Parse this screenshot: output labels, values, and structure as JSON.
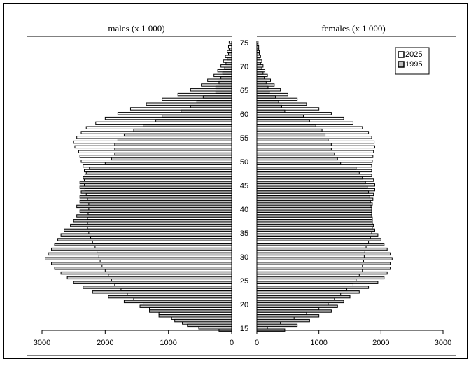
{
  "chart_data": {
    "type": "pyramid",
    "left_title": "males (x 1 000)",
    "right_title": "females (x 1 000)",
    "categories": [
      15,
      null,
      null,
      null,
      null,
      20,
      null,
      null,
      null,
      null,
      25,
      null,
      null,
      null,
      null,
      30,
      null,
      null,
      null,
      null,
      35,
      null,
      null,
      null,
      null,
      40,
      null,
      null,
      null,
      null,
      45,
      null,
      null,
      null,
      null,
      50,
      null,
      null,
      null,
      null,
      55,
      null,
      null,
      null,
      null,
      60,
      null,
      null,
      null,
      null,
      65,
      null,
      null,
      null,
      null,
      70,
      null,
      null,
      null,
      null,
      75
    ],
    "xlim": [
      0,
      3000
    ],
    "xticks": [
      0,
      1000,
      2000,
      3000
    ],
    "legend": "upper right",
    "series": [
      {
        "name": "2025",
        "color": "#ffffff",
        "males": [
          520,
          780,
          950,
          1150,
          1300,
          1400,
          1550,
          1650,
          1750,
          1850,
          1900,
          1950,
          2000,
          2050,
          2080,
          2100,
          2130,
          2160,
          2200,
          2230,
          2260,
          2280,
          2280,
          2280,
          2270,
          2260,
          2260,
          2280,
          2300,
          2320,
          2330,
          2330,
          2320,
          2330,
          2350,
          2380,
          2400,
          2420,
          2480,
          2500,
          2450,
          2380,
          2300,
          2150,
          2000,
          1800,
          1600,
          1350,
          1100,
          850,
          650,
          480,
          380,
          280,
          220,
          170,
          130,
          100,
          70,
          50,
          40
        ],
        "females": [
          170,
          380,
          600,
          800,
          1000,
          1150,
          1250,
          1350,
          1450,
          1550,
          1600,
          1650,
          1700,
          1700,
          1720,
          1730,
          1740,
          1760,
          1800,
          1830,
          1850,
          1860,
          1860,
          1860,
          1850,
          1850,
          1860,
          1870,
          1880,
          1900,
          1900,
          1880,
          1850,
          1850,
          1850,
          1860,
          1870,
          1880,
          1900,
          1890,
          1850,
          1800,
          1700,
          1550,
          1400,
          1200,
          1000,
          800,
          650,
          500,
          380,
          280,
          220,
          170,
          130,
          100,
          80,
          60,
          40,
          30,
          20
        ]
      },
      {
        "name": "1995",
        "color": "#c0c0c0",
        "males": [
          200,
          700,
          900,
          1150,
          1300,
          1450,
          1700,
          1950,
          2200,
          2350,
          2500,
          2600,
          2700,
          2800,
          2850,
          2950,
          2900,
          2850,
          2800,
          2750,
          2700,
          2650,
          2550,
          2500,
          2450,
          2400,
          2450,
          2400,
          2400,
          2380,
          2400,
          2400,
          2350,
          2300,
          2250,
          2000,
          1900,
          1850,
          1850,
          1850,
          1800,
          1700,
          1550,
          1400,
          1200,
          1100,
          800,
          650,
          550,
          450,
          250,
          250,
          200,
          170,
          140,
          110,
          90,
          70,
          50,
          40,
          30
        ],
        "females": [
          450,
          650,
          850,
          1000,
          1200,
          1300,
          1400,
          1500,
          1650,
          1800,
          1950,
          2050,
          2100,
          2150,
          2150,
          2180,
          2150,
          2100,
          2050,
          2000,
          1950,
          1900,
          1880,
          1860,
          1850,
          1850,
          1840,
          1830,
          1820,
          1800,
          1780,
          1750,
          1700,
          1650,
          1600,
          1350,
          1300,
          1250,
          1200,
          1200,
          1150,
          1100,
          1050,
          950,
          850,
          750,
          450,
          400,
          350,
          300,
          200,
          180,
          150,
          120,
          100,
          80,
          60,
          50,
          40,
          30,
          20
        ]
      }
    ]
  }
}
